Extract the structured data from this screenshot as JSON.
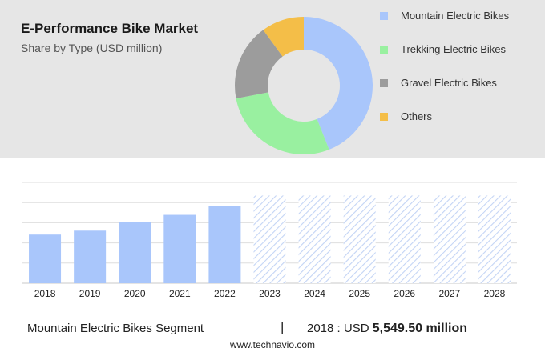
{
  "colors": {
    "mountain": "#a9c6fb",
    "trekking": "#99f0a0",
    "gravel": "#9c9c9c",
    "others": "#f4be48",
    "forecast_hatch": "#c3d4f5"
  },
  "chart_data": [
    {
      "type": "pie",
      "title": "E-Performance Bike Market",
      "subtitle": "Share by Type (USD million)",
      "legend_position": "right",
      "categories": [
        "Mountain Electric Bikes",
        "Trekking Electric Bikes",
        "Gravel Electric Bikes",
        "Others"
      ],
      "values": [
        44,
        28,
        18,
        10
      ]
    },
    {
      "type": "bar",
      "categories": [
        "2018",
        "2019",
        "2020",
        "2021",
        "2022",
        "2023",
        "2024",
        "2025",
        "2026",
        "2027",
        "2028"
      ],
      "values": [
        5549.5,
        6000,
        6950,
        7800,
        8800,
        10000,
        10000,
        10000,
        10000,
        10000,
        10000
      ],
      "forecast_from": "2023",
      "ylim": [
        0,
        11500
      ],
      "grid": true
    }
  ],
  "footer": {
    "segment": "Mountain Electric Bikes Segment",
    "divider": "|",
    "year_prefix": "2018 : USD",
    "value": "5,549.50 million"
  },
  "source": "www.technavio.com"
}
